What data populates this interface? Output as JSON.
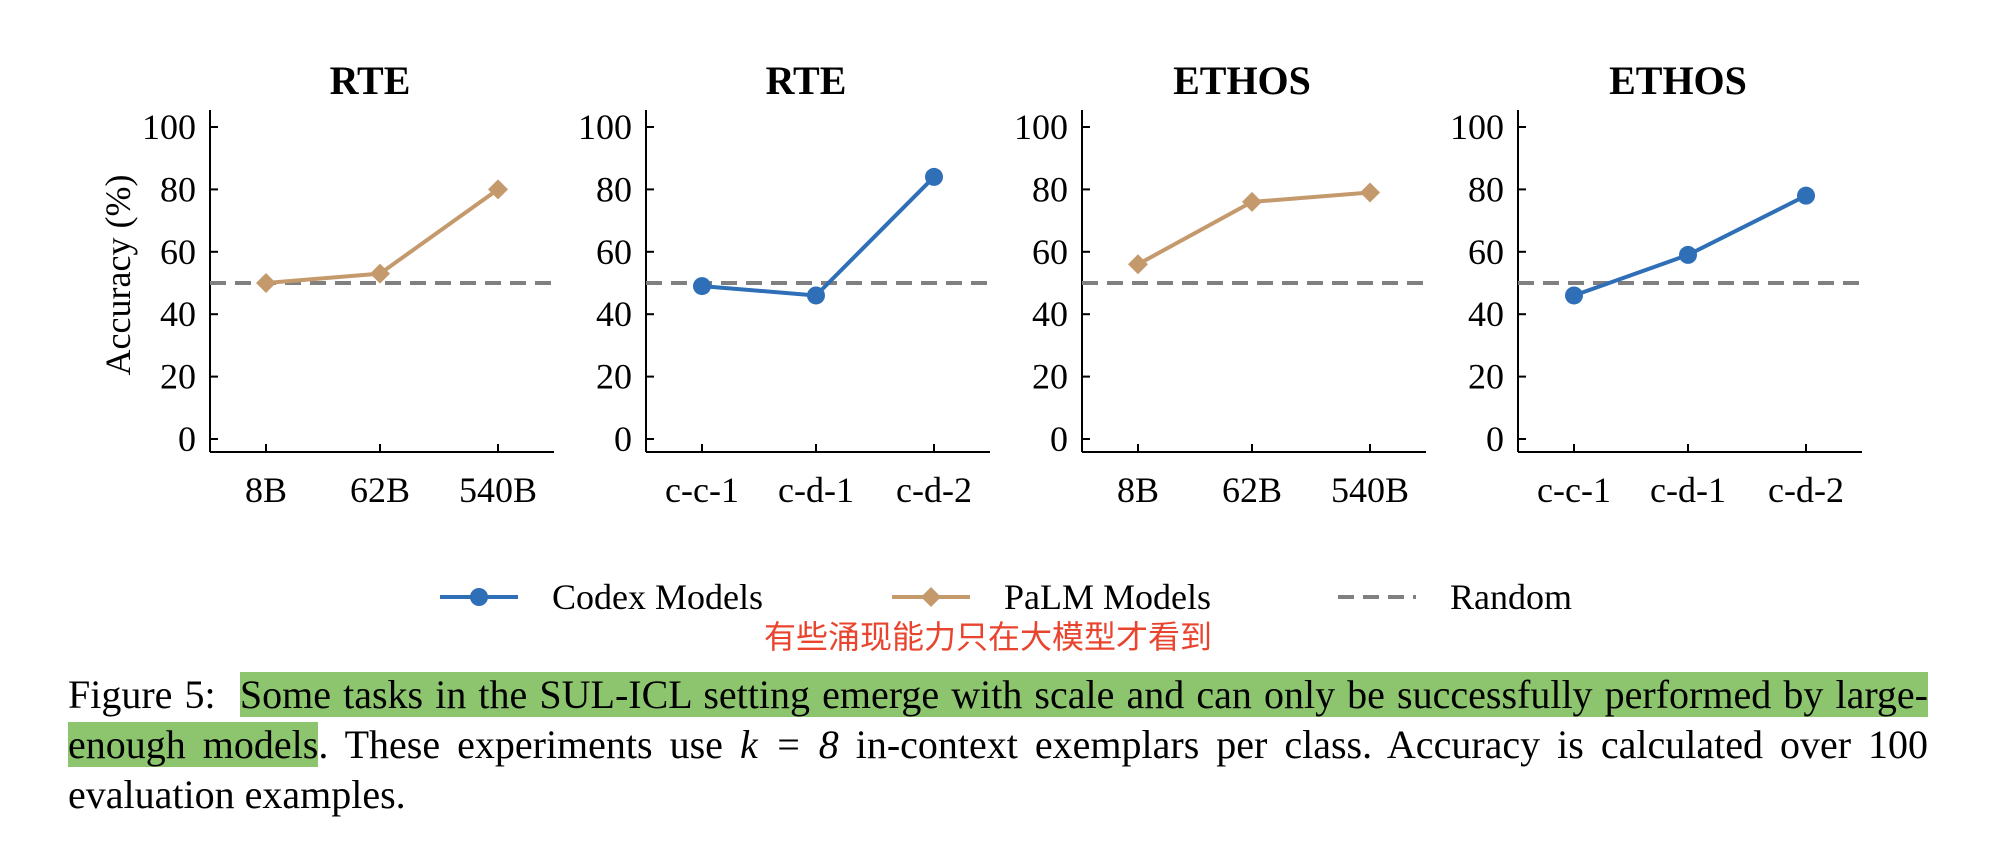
{
  "colors": {
    "codex": "#2e6fb7",
    "palm": "#c49a6c",
    "random": "#808080",
    "highlight": "#8cc56e",
    "note": "#e8442e"
  },
  "chart_data": [
    {
      "type": "line",
      "title": "RTE",
      "ylabel": "Accuracy (%)",
      "ylim": [
        0,
        100
      ],
      "yticks": [
        0,
        20,
        40,
        60,
        80,
        100
      ],
      "categories": [
        "8B",
        "62B",
        "540B"
      ],
      "series": [
        {
          "name": "PaLM Models",
          "marker": "diamond",
          "values": [
            50,
            53,
            80
          ]
        }
      ],
      "random": 50
    },
    {
      "type": "line",
      "title": "RTE",
      "ylabel": "",
      "ylim": [
        0,
        100
      ],
      "yticks": [
        0,
        20,
        40,
        60,
        80,
        100
      ],
      "categories": [
        "c-c-1",
        "c-d-1",
        "c-d-2"
      ],
      "series": [
        {
          "name": "Codex Models",
          "marker": "circle",
          "values": [
            49,
            46,
            84
          ]
        }
      ],
      "random": 50
    },
    {
      "type": "line",
      "title": "ETHOS",
      "ylabel": "",
      "ylim": [
        0,
        100
      ],
      "yticks": [
        0,
        20,
        40,
        60,
        80,
        100
      ],
      "categories": [
        "8B",
        "62B",
        "540B"
      ],
      "series": [
        {
          "name": "PaLM Models",
          "marker": "diamond",
          "values": [
            56,
            76,
            79
          ]
        }
      ],
      "random": 50
    },
    {
      "type": "line",
      "title": "ETHOS",
      "ylabel": "",
      "ylim": [
        0,
        100
      ],
      "yticks": [
        0,
        20,
        40,
        60,
        80,
        100
      ],
      "categories": [
        "c-c-1",
        "c-d-1",
        "c-d-2"
      ],
      "series": [
        {
          "name": "Codex Models",
          "marker": "circle",
          "values": [
            46,
            59,
            78
          ]
        }
      ],
      "random": 50
    }
  ],
  "legend": [
    {
      "label": "Codex Models",
      "marker": "circle",
      "color": "#2e6fb7",
      "dashed": false
    },
    {
      "label": "PaLM Models",
      "marker": "diamond",
      "color": "#c49a6c",
      "dashed": false
    },
    {
      "label": "Random",
      "marker": "none",
      "color": "#808080",
      "dashed": true
    }
  ],
  "annotation": "有些涌现能力只在大模型才看到",
  "caption": {
    "prefix": "Figure 5:",
    "highlighted": "Some tasks in the SUL-ICL setting emerge with scale and can only be successfully performed by large-enough models",
    "rest_before_math": ". These experiments use",
    "math": "k = 8",
    "rest_after_math": "in-context exemplars per class. Accuracy is calculated over 100 evaluation examples."
  }
}
